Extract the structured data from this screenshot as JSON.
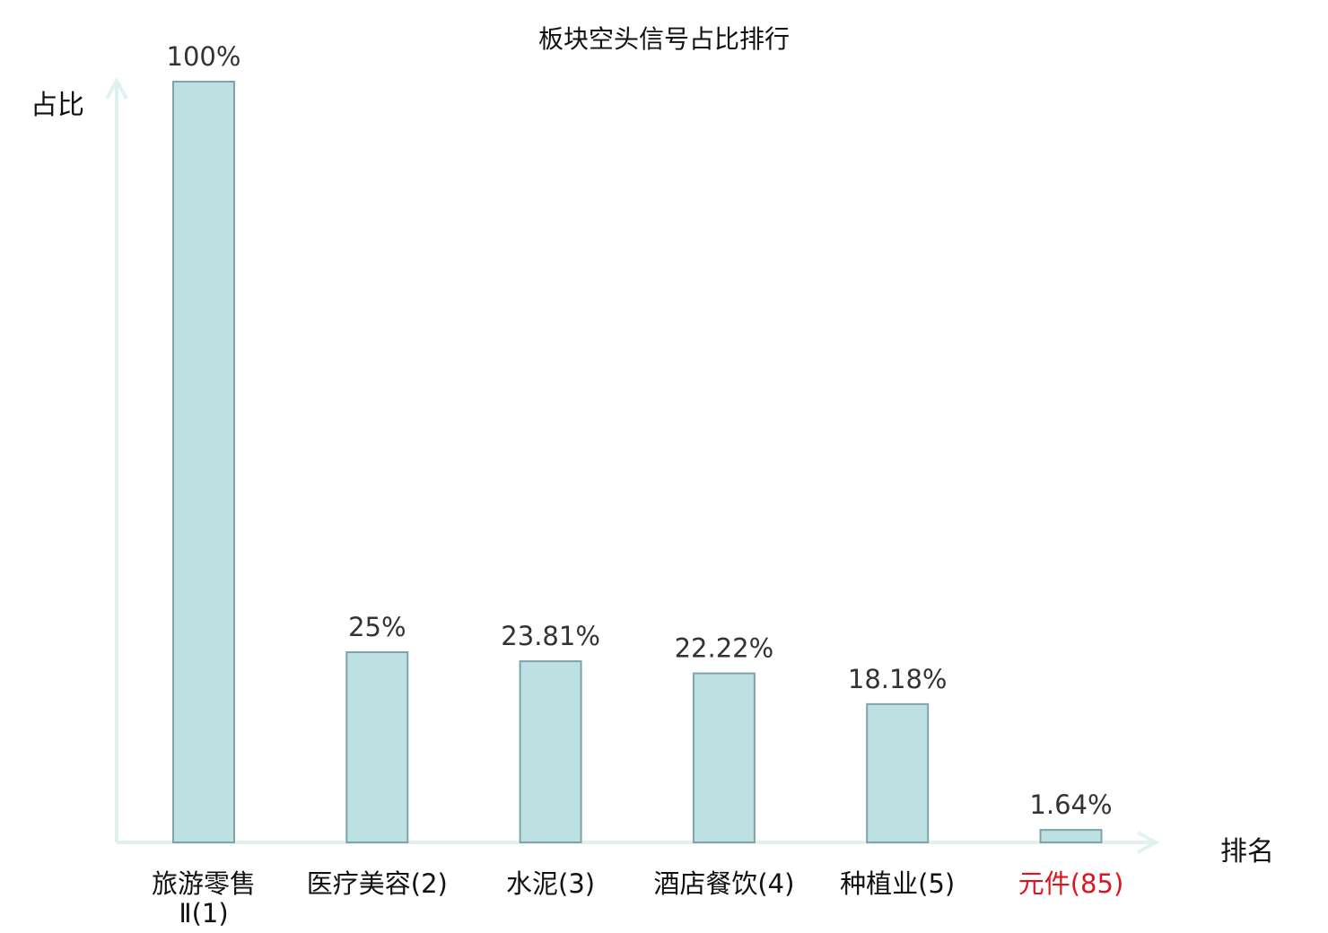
{
  "chart_data": {
    "type": "bar",
    "title": "板块空头信号占比排行",
    "ylabel": "占比",
    "xlabel": "排名",
    "categories": [
      [
        "旅游零售",
        "Ⅱ(1)"
      ],
      [
        "医疗美容(2)"
      ],
      [
        "水泥(3)"
      ],
      [
        "酒店餐饮(4)"
      ],
      [
        "种植业(5)"
      ],
      [
        "元件(85)"
      ]
    ],
    "values": [
      100,
      25,
      23.81,
      22.22,
      18.18,
      1.64
    ],
    "value_labels": [
      "100%",
      "25%",
      "23.81%",
      "22.22%",
      "18.18%",
      "1.64%"
    ],
    "highlight_index": 5,
    "ylim": [
      0,
      100
    ],
    "grid": false,
    "colors": {
      "bar_fill": "#bde0e3",
      "bar_stroke": "#7fa3a8",
      "axis": "#e0f2f0",
      "label": "#333333",
      "highlight": "#e0141e"
    }
  }
}
